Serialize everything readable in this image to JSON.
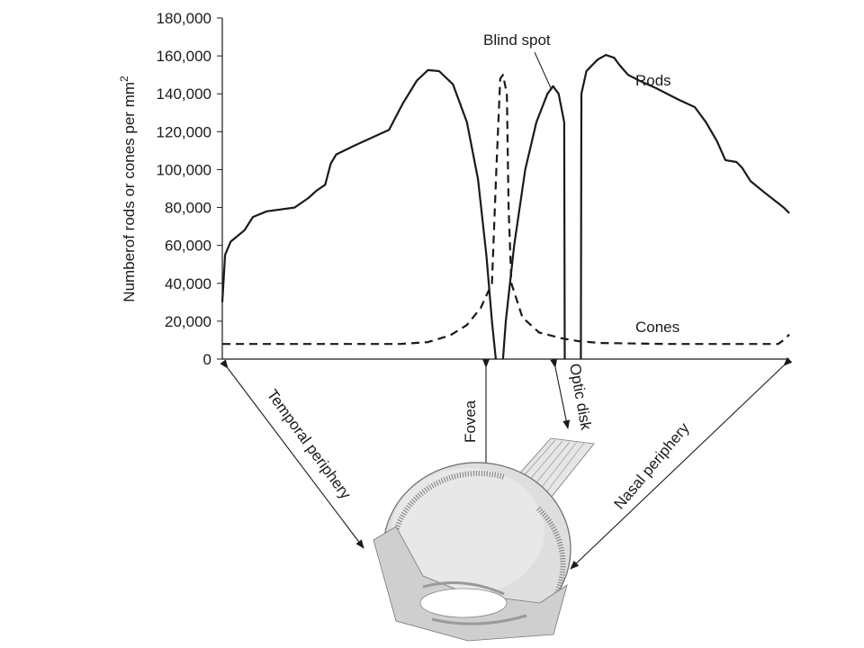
{
  "chart_data": {
    "type": "line",
    "ylabel": "Numberof rods or cones per mm",
    "ylabel_sup": "2",
    "ylim": [
      0,
      180000
    ],
    "yticks": [
      "0",
      "20,000",
      "40,000",
      "60,000",
      "80,000",
      "100,000",
      "120,000",
      "140,000",
      "160,000",
      "180,000"
    ],
    "x_description": "Temporal periphery to nasal periphery",
    "series": [
      {
        "name": "Rods",
        "style": "solid",
        "segments": [
          [
            [
              0,
              30000
            ],
            [
              0.5,
              55000
            ],
            [
              1.5,
              62000
            ],
            [
              4,
              68000
            ],
            [
              5.5,
              75000
            ],
            [
              8,
              78000
            ],
            [
              13,
              80000
            ],
            [
              15.5,
              85000
            ],
            [
              17,
              89000
            ],
            [
              18.5,
              92000
            ],
            [
              19.5,
              103000
            ],
            [
              20.5,
              108000
            ],
            [
              24,
              113000
            ],
            [
              30,
              121000
            ],
            [
              32.5,
              135000
            ],
            [
              35,
              147000
            ],
            [
              37,
              152500
            ],
            [
              39,
              152000
            ],
            [
              41.5,
              145000
            ],
            [
              44,
              125000
            ],
            [
              46,
              95000
            ],
            [
              47.5,
              55000
            ],
            [
              48.5,
              20000
            ],
            [
              49.2,
              0
            ]
          ],
          [
            [
              49.2,
              0
            ]
          ],
          [
            [
              50.5,
              0
            ],
            [
              51,
              20000
            ],
            [
              52.5,
              60000
            ],
            [
              54.5,
              100000
            ],
            [
              56.5,
              125000
            ],
            [
              58.5,
              140000
            ],
            [
              59.5,
              144000
            ],
            [
              60.5,
              140000
            ],
            [
              61.5,
              125000
            ],
            [
              61.6,
              0
            ]
          ],
          [
            [
              64.5,
              0
            ],
            [
              64.6,
              140000
            ],
            [
              65.5,
              152000
            ],
            [
              67.5,
              158000
            ],
            [
              69,
              160500
            ],
            [
              70.5,
              159000
            ],
            [
              71.5,
              155000
            ],
            [
              73,
              150000
            ],
            [
              75,
              147000
            ],
            [
              78,
              143000
            ],
            [
              82,
              137000
            ],
            [
              85,
              133000
            ],
            [
              87,
              125000
            ],
            [
              89,
              115000
            ],
            [
              90.5,
              105000
            ],
            [
              92.5,
              104000
            ],
            [
              93.5,
              101000
            ],
            [
              95,
              94000
            ],
            [
              97.5,
              88000
            ],
            [
              101,
              80000
            ],
            [
              102,
              77000
            ]
          ]
        ]
      },
      {
        "name": "Cones",
        "style": "dashed",
        "segments": [
          [
            [
              0,
              8000
            ],
            [
              20,
              8000
            ],
            [
              32,
              8000
            ],
            [
              37,
              9000
            ],
            [
              41,
              12500
            ],
            [
              44,
              18000
            ],
            [
              46.5,
              27000
            ],
            [
              48.5,
              40000
            ],
            [
              49.3,
              100000
            ],
            [
              50,
              148000
            ],
            [
              50.5,
              150000
            ],
            [
              51.2,
              140000
            ],
            [
              51.5,
              80000
            ],
            [
              52,
              40000
            ],
            [
              54,
              22000
            ],
            [
              57,
              14000
            ],
            [
              61,
              11000
            ],
            [
              64,
              9500
            ],
            [
              68,
              8500
            ],
            [
              80,
              8000
            ],
            [
              95,
              8000
            ],
            [
              100,
              8000
            ],
            [
              101,
              10000
            ],
            [
              102,
              13000
            ]
          ]
        ]
      }
    ],
    "annotations": {
      "rods": "Rods",
      "cones": "Cones",
      "blind_spot": "Blind spot",
      "fovea": "Fovea",
      "optic_disk": "Optic disk",
      "temporal": "Temporal periphery",
      "nasal": "Nasal periphery"
    }
  },
  "colors": {
    "ink": "#1a1a1a",
    "eye_fill": "#dcdcdc",
    "eye_dark": "#a8a8a8"
  }
}
